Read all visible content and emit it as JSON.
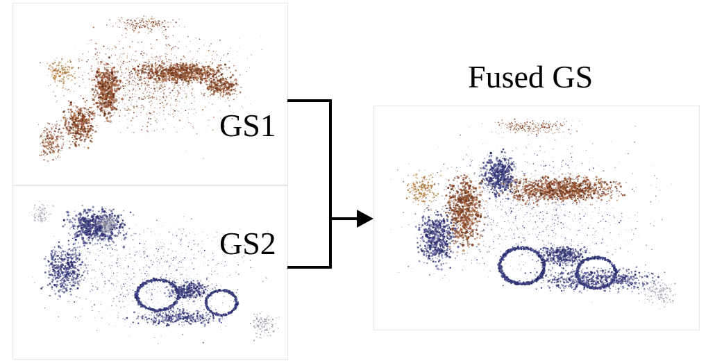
{
  "labels": {
    "gs1": "GS1",
    "gs2": "GS2",
    "fused": "Fused GS"
  },
  "colors": {
    "gs1_points": "#7a3a1c",
    "gs2_points": "#2c2f6e",
    "line": "#000000"
  },
  "images": {
    "gs1": "scatter render of motorbike-and-railing scene, brown/red point cloud",
    "gs2": "scatter render of motorbike scene, dark blue point cloud",
    "fused": "merged render combining brown and blue point clouds"
  }
}
